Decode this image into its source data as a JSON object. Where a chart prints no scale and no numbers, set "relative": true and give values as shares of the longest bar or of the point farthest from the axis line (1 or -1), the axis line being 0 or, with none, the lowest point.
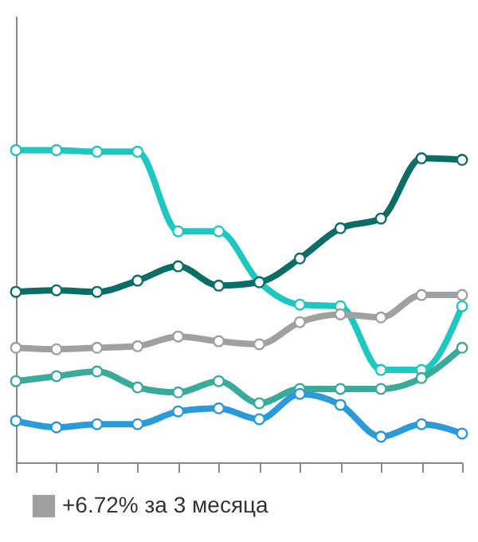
{
  "chart_data": {
    "type": "line",
    "relative": true,
    "categories": [
      null,
      null,
      null,
      null,
      null,
      null,
      null,
      null,
      null,
      null,
      null,
      null
    ],
    "series": [
      {
        "color": "#1fc7c1",
        "values": [
          1,
          1,
          0.995,
          0.995,
          0.74,
          0.74,
          0.577,
          0.505,
          0.5,
          0.296,
          0.296,
          0.5
        ]
      },
      {
        "color": "#0b6e66",
        "values": [
          0.546,
          0.551,
          0.546,
          0.582,
          0.628,
          0.566,
          0.577,
          0.653,
          0.75,
          0.781,
          0.974,
          0.969
        ]
      },
      {
        "name": "+6.72% за 3 месяца",
        "color": "#a0a0a0",
        "values": [
          0.367,
          0.362,
          0.367,
          0.372,
          0.403,
          0.388,
          0.378,
          0.449,
          0.474,
          0.464,
          0.536,
          0.536
        ]
      },
      {
        "color": "#3aaa9a",
        "values": [
          0.26,
          0.276,
          0.291,
          0.24,
          0.224,
          0.26,
          0.189,
          0.235,
          0.235,
          0.235,
          0.27,
          0.367
        ]
      },
      {
        "color": "#2a9ad8",
        "values": [
          0.133,
          0.112,
          0.122,
          0.122,
          0.163,
          0.173,
          0.138,
          0.219,
          0.184,
          0.082,
          0.122,
          0.092
        ]
      }
    ],
    "marker": "circle",
    "line_style": "solid",
    "legend": "bottom left",
    "grid": false
  }
}
